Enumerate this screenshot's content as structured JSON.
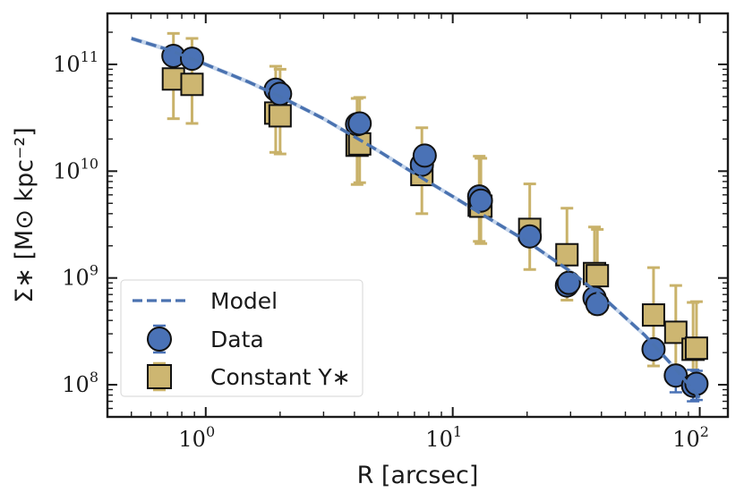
{
  "chart_data": {
    "type": "scatter",
    "xscale": "log",
    "yscale": "log",
    "xlim": [
      0.4,
      130
    ],
    "ylim": [
      50000000.0,
      300000000000.0
    ],
    "xlabel": "R [arcsec]",
    "ylabel": "Σ∗ [M⊙ kpc⁻²]",
    "xticks": [
      {
        "value": 1,
        "base": "10",
        "exp": "0"
      },
      {
        "value": 10,
        "base": "10",
        "exp": "1"
      },
      {
        "value": 100,
        "base": "10",
        "exp": "2"
      }
    ],
    "yticks": [
      {
        "value": 100000000.0,
        "base": "10",
        "exp": "8"
      },
      {
        "value": 1000000000.0,
        "base": "10",
        "exp": "9"
      },
      {
        "value": 10000000000.0,
        "base": "10",
        "exp": "10"
      },
      {
        "value": 100000000000.0,
        "base": "10",
        "exp": "11"
      }
    ],
    "legend_position": "bottom-left",
    "series": [
      {
        "name": "Model",
        "kind": "dashed-line",
        "color": "#4a72b0",
        "band_color": "#b7cbe6",
        "x": [
          0.5,
          0.7,
          1.0,
          1.5,
          2.0,
          3.0,
          4.0,
          5.0,
          7.0,
          10.0,
          13.0,
          20.0,
          30.0,
          40.0,
          60.0,
          80.0,
          100.0
        ],
        "y": [
          175000000000.0,
          138000000000.0,
          100000000000.0,
          68000000000.0,
          50000000000.0,
          31000000000.0,
          21000000000.0,
          15500000000.0,
          9500000000.0,
          5800000000.0,
          4000000000.0,
          2200000000.0,
          1150000000.0,
          680000000.0,
          290000000.0,
          140000000.0,
          75000000.0
        ]
      },
      {
        "name": "Data",
        "kind": "circle",
        "color": "#4a72b6",
        "errcolor": "#4a72b6",
        "x": [
          0.74,
          0.88,
          1.92,
          2.0,
          4.1,
          4.2,
          7.5,
          7.7,
          12.8,
          13.0,
          20.5,
          29.0,
          29.5,
          37.5,
          38.5,
          65.0,
          80.0,
          94.0,
          97.0
        ],
        "y": [
          120000000000.0,
          113000000000.0,
          58000000000.0,
          53000000000.0,
          27500000000.0,
          28000000000.0,
          11500000000.0,
          14000000000.0,
          5800000000.0,
          5300000000.0,
          2450000000.0,
          850000000.0,
          900000000.0,
          650000000.0,
          570000000.0,
          215000000.0,
          122000000.0,
          98000000.0,
          102000000.0
        ],
        "lo": [
          null,
          null,
          null,
          null,
          null,
          null,
          null,
          null,
          null,
          null,
          null,
          null,
          null,
          null,
          null,
          null,
          85000000.0,
          70000000.0,
          72000000.0
        ],
        "hi": [
          null,
          null,
          null,
          null,
          null,
          null,
          null,
          null,
          null,
          null,
          null,
          null,
          null,
          null,
          null,
          null,
          145000000.0,
          138000000.0,
          135000000.0
        ]
      },
      {
        "name": "Constant Υ∗",
        "kind": "square",
        "color": "#cdb671",
        "errcolor": "#c9b26a",
        "x": [
          0.74,
          0.88,
          1.92,
          2.0,
          4.1,
          4.2,
          7.5,
          12.8,
          13.0,
          20.5,
          29.0,
          37.5,
          38.5,
          65.0,
          80.0,
          94.0,
          97.0
        ],
        "y": [
          73000000000.0,
          65000000000.0,
          35000000000.0,
          33000000000.0,
          17500000000.0,
          18000000000.0,
          9300000000.0,
          4800000000.0,
          4700000000.0,
          2850000000.0,
          1650000000.0,
          1100000000.0,
          1050000000.0,
          450000000.0,
          310000000.0,
          215000000.0,
          220000000.0
        ],
        "lo": [
          31000000000.0,
          28000000000.0,
          15000000000.0,
          14500000000.0,
          7500000000.0,
          7800000000.0,
          4000000000.0,
          2200000000.0,
          2100000000.0,
          1200000000.0,
          620000000.0,
          480000000.0,
          460000000.0,
          150000000.0,
          125000000.0,
          90000000.0,
          92000000.0
        ],
        "hi": [
          195000000000.0,
          175000000000.0,
          96000000000.0,
          90000000000.0,
          48000000000.0,
          49000000000.0,
          25500000000.0,
          13800000000.0,
          13200000000.0,
          7600000000.0,
          4500000000.0,
          3000000000.0,
          2850000000.0,
          1250000000.0,
          850000000.0,
          590000000.0,
          600000000.0
        ]
      }
    ]
  }
}
